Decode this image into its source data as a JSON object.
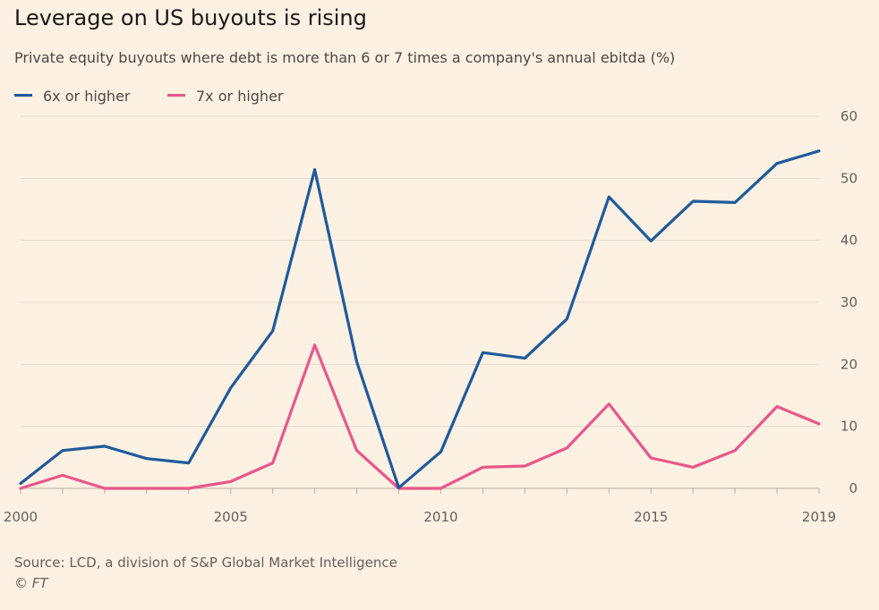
{
  "header": {
    "title": "Leverage on US buyouts is rising",
    "subtitle": "Private equity buyouts where debt is more than 6 or 7 times a company's annual ebitda (%)"
  },
  "footer": {
    "source": "Source: LCD, a division of S&P Global Market Intelligence",
    "copyright": "© FT"
  },
  "colors": {
    "background": "#fdf1e3",
    "series_6x": "#1f5a9a",
    "series_7x": "#e8578a",
    "grid": "#e5d8ca"
  },
  "chart_data": {
    "type": "line",
    "x": [
      2000,
      2001,
      2002,
      2003,
      2004,
      2005,
      2006,
      2007,
      2008,
      2009,
      2010,
      2011,
      2012,
      2013,
      2014,
      2015,
      2016,
      2017,
      2018,
      2019
    ],
    "series": [
      {
        "name": "6x or higher",
        "color": "#1f5a9a",
        "values": [
          0.8,
          6.1,
          6.8,
          4.8,
          4.1,
          16.2,
          25.4,
          51.4,
          20.4,
          0.1,
          5.9,
          21.9,
          21.0,
          27.3,
          47.0,
          39.9,
          46.3,
          46.1,
          52.4,
          54.4
        ]
      },
      {
        "name": "7x or higher",
        "color": "#e8578a",
        "values": [
          0.0,
          2.1,
          0.0,
          0.0,
          0.0,
          1.1,
          4.1,
          23.1,
          6.1,
          0.0,
          0.0,
          3.4,
          3.6,
          6.5,
          13.6,
          4.9,
          3.4,
          6.1,
          13.2,
          10.4
        ]
      }
    ],
    "y_ticks": [
      0,
      10,
      20,
      30,
      40,
      50,
      60
    ],
    "x_tick_labels": [
      {
        "value": 2000,
        "label": "2000"
      },
      {
        "value": 2005,
        "label": "2005"
      },
      {
        "value": 2010,
        "label": "2010"
      },
      {
        "value": 2015,
        "label": "2015"
      },
      {
        "value": 2019,
        "label": "2019"
      }
    ],
    "xlim": [
      2000,
      2019
    ],
    "ylim": [
      0,
      60
    ],
    "grid": true,
    "y_axis_side": "right",
    "legend_position": "top-left"
  }
}
